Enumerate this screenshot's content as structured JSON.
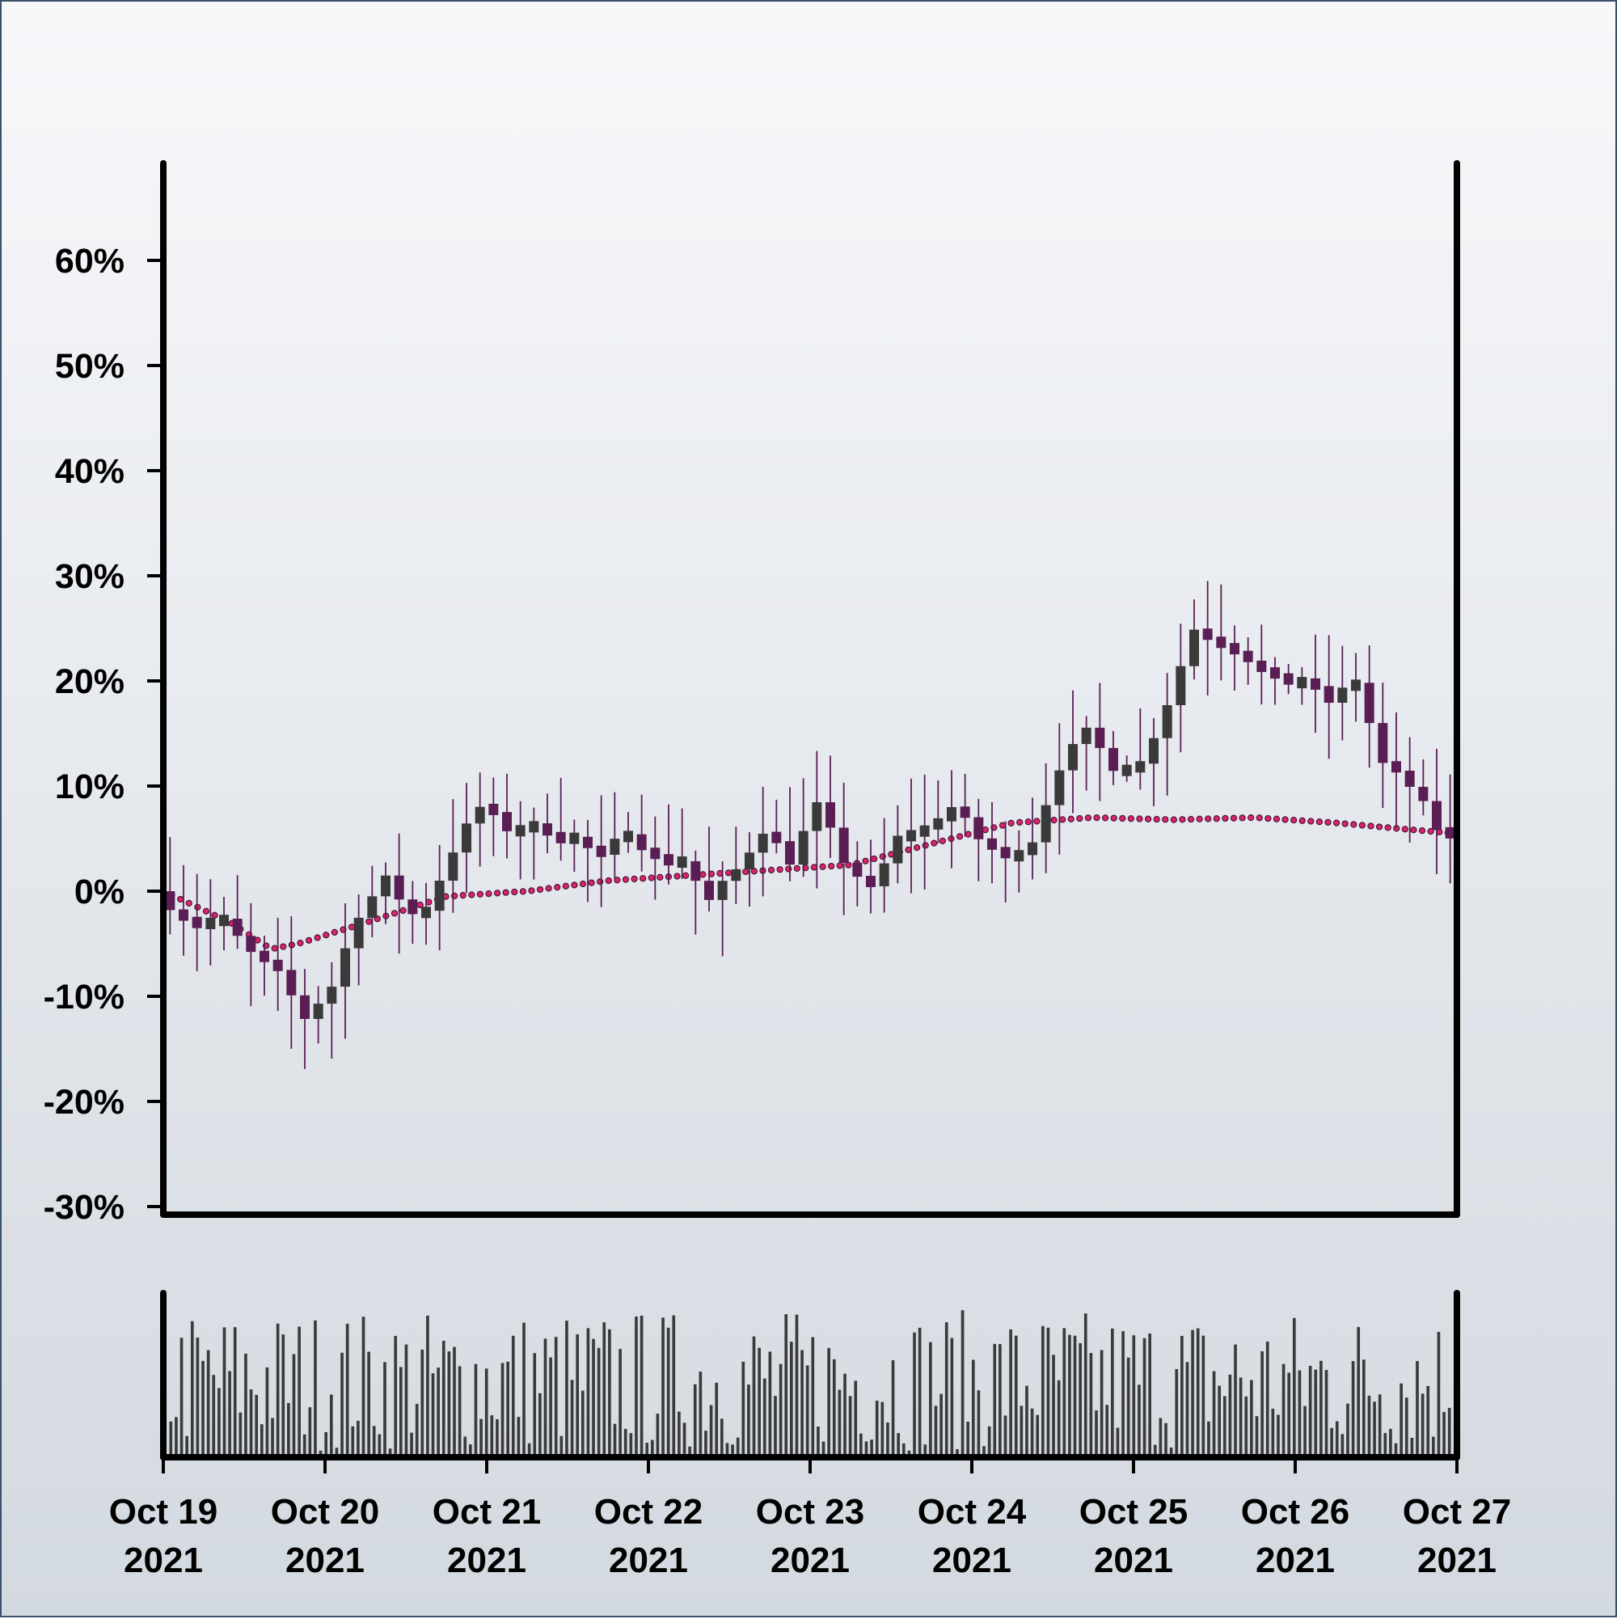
{
  "chart_data": {
    "type": "candlestick",
    "title": "",
    "xlabel": "",
    "ylabel": "",
    "x_start": "2021-10-19 00:00",
    "x_end": "2021-10-27 00:00",
    "x_ticks": [
      {
        "date": "2021-10-19",
        "label": [
          "Oct 19",
          "2021"
        ]
      },
      {
        "date": "2021-10-20",
        "label": [
          "Oct 20",
          "2021"
        ]
      },
      {
        "date": "2021-10-21",
        "label": [
          "Oct 21",
          "2021"
        ]
      },
      {
        "date": "2021-10-22",
        "label": [
          "Oct 22",
          "2021"
        ]
      },
      {
        "date": "2021-10-23",
        "label": [
          "Oct 23",
          "2021"
        ]
      },
      {
        "date": "2021-10-24",
        "label": [
          "Oct 24",
          "2021"
        ]
      },
      {
        "date": "2021-10-25",
        "label": [
          "Oct 25",
          "2021"
        ]
      },
      {
        "date": "2021-10-26",
        "label": [
          "Oct 26",
          "2021"
        ]
      },
      {
        "date": "2021-10-27",
        "label": [
          "Oct 27",
          "2021"
        ]
      }
    ],
    "y_ticks": [
      {
        "value": -30,
        "label": "-30%"
      },
      {
        "value": -20,
        "label": "-20%"
      },
      {
        "value": -10,
        "label": "-10%"
      },
      {
        "value": 0,
        "label": "0%"
      },
      {
        "value": 10,
        "label": "10%"
      },
      {
        "value": 20,
        "label": "20%"
      },
      {
        "value": 30,
        "label": "30%"
      },
      {
        "value": 40,
        "label": "40%"
      },
      {
        "value": 50,
        "label": "50%"
      },
      {
        "value": 60,
        "label": "60%"
      }
    ],
    "ylim": [
      -30,
      69
    ],
    "grid": false,
    "legend": "none",
    "candle_interval_hours": 2,
    "close_path": [
      {
        "x": "2021-10-19 00:00",
        "y": 0
      },
      {
        "x": "2021-10-19 05:00",
        "y": -3
      },
      {
        "x": "2021-10-19 10:00",
        "y": -3
      },
      {
        "x": "2021-10-19 14:00",
        "y": -6
      },
      {
        "x": "2021-10-19 18:00",
        "y": -8
      },
      {
        "x": "2021-10-19 22:00",
        "y": -12
      },
      {
        "x": "2021-10-20 02:00",
        "y": -9
      },
      {
        "x": "2021-10-20 06:00",
        "y": -2
      },
      {
        "x": "2021-10-20 10:00",
        "y": 1
      },
      {
        "x": "2021-10-20 15:00",
        "y": -3
      },
      {
        "x": "2021-10-20 20:00",
        "y": 4
      },
      {
        "x": "2021-10-21 00:00",
        "y": 8
      },
      {
        "x": "2021-10-21 04:00",
        "y": 6
      },
      {
        "x": "2021-10-21 09:00",
        "y": 6
      },
      {
        "x": "2021-10-21 14:00",
        "y": 5
      },
      {
        "x": "2021-10-21 18:00",
        "y": 3
      },
      {
        "x": "2021-10-21 22:00",
        "y": 6
      },
      {
        "x": "2021-10-22 02:00",
        "y": 3
      },
      {
        "x": "2021-10-22 06:00",
        "y": 3
      },
      {
        "x": "2021-10-22 10:00",
        "y": -1
      },
      {
        "x": "2021-10-22 14:00",
        "y": 2
      },
      {
        "x": "2021-10-22 18:00",
        "y": 6
      },
      {
        "x": "2021-10-22 22:00",
        "y": 3
      },
      {
        "x": "2021-10-23 02:00",
        "y": 8
      },
      {
        "x": "2021-10-23 06:00",
        "y": 3
      },
      {
        "x": "2021-10-23 10:00",
        "y": 0
      },
      {
        "x": "2021-10-23 14:00",
        "y": 5
      },
      {
        "x": "2021-10-23 18:00",
        "y": 6
      },
      {
        "x": "2021-10-23 22:00",
        "y": 8
      },
      {
        "x": "2021-10-24 02:00",
        "y": 5
      },
      {
        "x": "2021-10-24 06:00",
        "y": 3
      },
      {
        "x": "2021-10-24 10:00",
        "y": 5
      },
      {
        "x": "2021-10-24 14:00",
        "y": 12
      },
      {
        "x": "2021-10-24 18:00",
        "y": 15
      },
      {
        "x": "2021-10-24 22:00",
        "y": 12
      },
      {
        "x": "2021-10-25 02:00",
        "y": 12
      },
      {
        "x": "2021-10-25 06:00",
        "y": 18
      },
      {
        "x": "2021-10-25 10:00",
        "y": 25
      },
      {
        "x": "2021-10-25 13:00",
        "y": 24
      },
      {
        "x": "2021-10-25 17:00",
        "y": 23
      },
      {
        "x": "2021-10-25 21:00",
        "y": 20
      },
      {
        "x": "2021-10-26 02:00",
        "y": 20
      },
      {
        "x": "2021-10-26 06:00",
        "y": 18
      },
      {
        "x": "2021-10-26 10:00",
        "y": 20
      },
      {
        "x": "2021-10-26 14:00",
        "y": 12
      },
      {
        "x": "2021-10-26 18:00",
        "y": 10
      },
      {
        "x": "2021-10-26 22:00",
        "y": 6
      },
      {
        "x": "2021-10-27 00:00",
        "y": 5
      }
    ],
    "moving_average": {
      "style": "dotted",
      "color": "#d6246e",
      "points": [
        {
          "x": "2021-10-19 00:00",
          "y": 0
        },
        {
          "x": "2021-10-19 10:00",
          "y": -3
        },
        {
          "x": "2021-10-19 16:00",
          "y": -5.5
        },
        {
          "x": "2021-10-19 20:00",
          "y": -5
        },
        {
          "x": "2021-10-20 06:00",
          "y": -3
        },
        {
          "x": "2021-10-20 18:00",
          "y": -0.5
        },
        {
          "x": "2021-10-21 06:00",
          "y": 0
        },
        {
          "x": "2021-10-21 18:00",
          "y": 1
        },
        {
          "x": "2021-10-22 06:00",
          "y": 1.5
        },
        {
          "x": "2021-10-22 18:00",
          "y": 2
        },
        {
          "x": "2021-10-23 06:00",
          "y": 2.5
        },
        {
          "x": "2021-10-23 18:00",
          "y": 4.5
        },
        {
          "x": "2021-10-24 06:00",
          "y": 6.5
        },
        {
          "x": "2021-10-24 18:00",
          "y": 7
        },
        {
          "x": "2021-10-25 06:00",
          "y": 6.8
        },
        {
          "x": "2021-10-25 18:00",
          "y": 7
        },
        {
          "x": "2021-10-26 06:00",
          "y": 6.5
        },
        {
          "x": "2021-10-26 18:00",
          "y": 5.8
        },
        {
          "x": "2021-10-27 00:00",
          "y": 5.5
        }
      ]
    },
    "volume_panel": true,
    "colors": {
      "candle_up": "#3a3a3a",
      "candle_down": "#5a1e54",
      "wick": "#5a1e54",
      "volume_bar": "#3a3a3a",
      "axis": "#000000",
      "background_top": "#f7f8fa",
      "background_bottom": "#d3d9e0",
      "border": "#3a506b"
    }
  }
}
